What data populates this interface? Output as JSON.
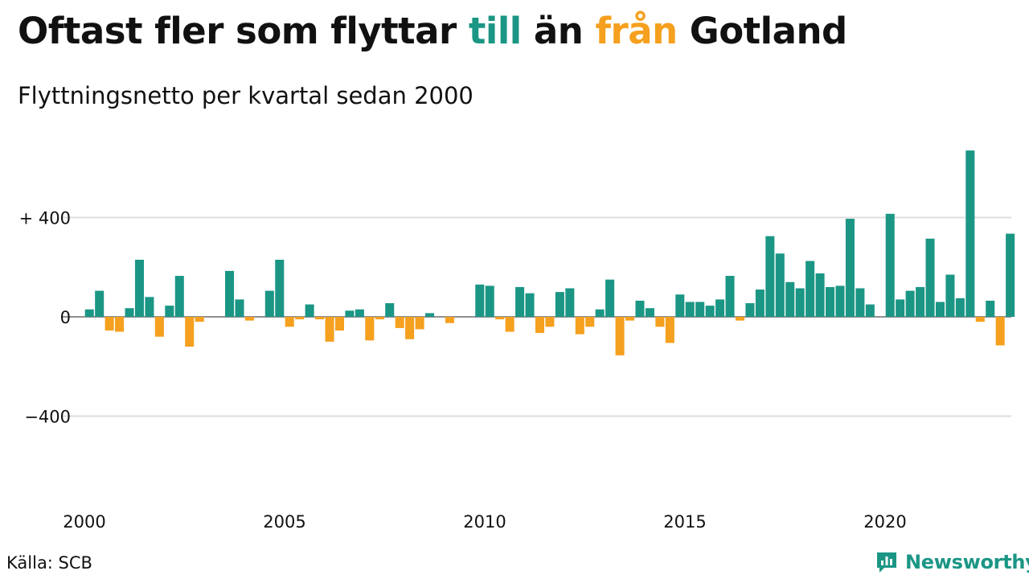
{
  "header": {
    "title_part1": "Oftast fler som flyttar ",
    "title_till": "till",
    "title_part2": " än ",
    "title_fran": "från",
    "title_part3": " Gotland",
    "subtitle": "Flyttningsnetto per kvartal sedan 2000"
  },
  "footer": {
    "source": "Källa: SCB",
    "brand": "Newsworthy",
    "logo_icon": "newsworthy-chart-icon"
  },
  "colors": {
    "positive": "#1b9685",
    "negative": "#f5a01e",
    "grid": "#dddddd",
    "text": "#111111"
  },
  "chart_data": {
    "type": "bar",
    "title": "Oftast fler som flyttar till än från Gotland",
    "subtitle": "Flyttningsnetto per kvartal sedan 2000",
    "xlabel": "",
    "ylabel": "",
    "x_start": "2000 Q1",
    "x_ticks": [
      "2000",
      "2005",
      "2010",
      "2015",
      "2020"
    ],
    "y_ticks": [
      {
        "value": 400,
        "label": "+ 400"
      },
      {
        "value": 0,
        "label": "0"
      },
      {
        "value": -400,
        "label": "−400"
      }
    ],
    "ylim": [
      -700,
      700
    ],
    "grid": true,
    "legend": "none",
    "values": [
      30,
      105,
      -55,
      -60,
      35,
      230,
      80,
      -80,
      45,
      165,
      -120,
      -20,
      0,
      0,
      185,
      70,
      -15,
      0,
      105,
      230,
      -40,
      -10,
      50,
      -10,
      -100,
      -55,
      25,
      30,
      -95,
      -10,
      55,
      -45,
      -90,
      -50,
      15,
      0,
      -25,
      0,
      0,
      130,
      125,
      -10,
      -60,
      120,
      95,
      -65,
      -40,
      100,
      115,
      -70,
      -40,
      30,
      150,
      -155,
      -15,
      65,
      35,
      -40,
      -105,
      90,
      60,
      60,
      45,
      70,
      165,
      -15,
      55,
      110,
      325,
      255,
      140,
      115,
      225,
      175,
      120,
      125,
      395,
      115,
      50,
      0,
      415,
      70,
      105,
      120,
      315,
      60,
      170,
      75,
      670,
      -20,
      65,
      -115,
      335
    ]
  }
}
